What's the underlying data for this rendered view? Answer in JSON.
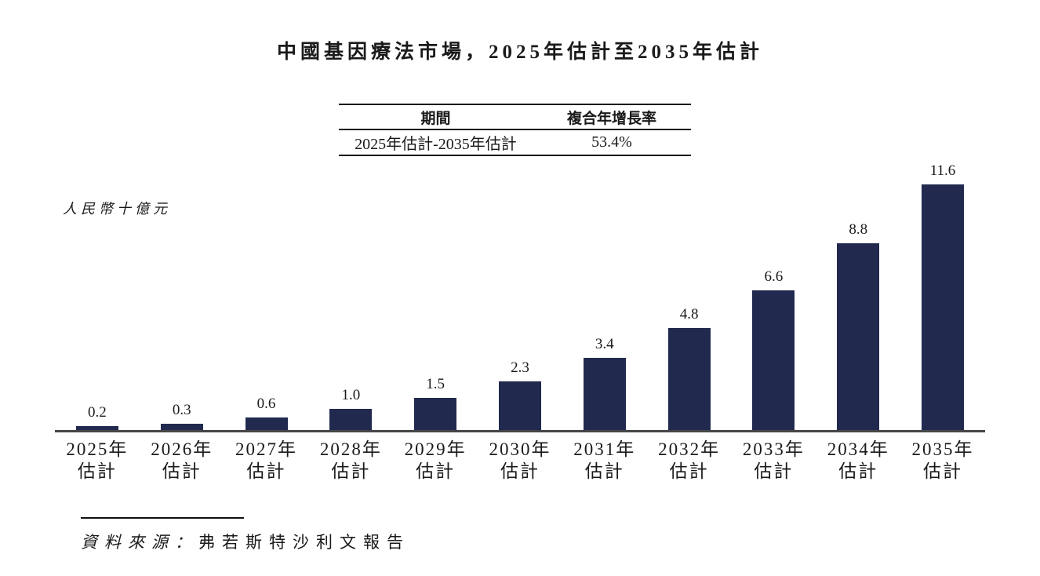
{
  "title": "中國基因療法市場，2025年估計至2035年估計",
  "cagr_table": {
    "headers": [
      "期間",
      "複合年增長率"
    ],
    "rows": [
      {
        "period": "2025年估計-2035年估計",
        "cagr": "53.4%"
      }
    ]
  },
  "unit_label": "人民幣十億元",
  "source": {
    "prefix": "資料來源：",
    "text": "弗若斯特沙利文報告"
  },
  "colors": {
    "bar": "#212A4E",
    "axis": "#474747",
    "text": "#1A1A1A"
  },
  "chart_data": {
    "type": "bar",
    "title": "中國基因療法市場，2025年估計至2035年估計",
    "xlabel": "",
    "ylabel": "人民幣十億元",
    "ylim": [
      0,
      12
    ],
    "grid": false,
    "legend": false,
    "categories": [
      "2025年估計",
      "2026年估計",
      "2027年估計",
      "2028年估計",
      "2029年估計",
      "2030年估計",
      "2031年估計",
      "2032年估計",
      "2033年估計",
      "2034年估計",
      "2035年估計"
    ],
    "tick_lines": [
      [
        "2025年",
        "估計"
      ],
      [
        "2026年",
        "估計"
      ],
      [
        "2027年",
        "估計"
      ],
      [
        "2028年",
        "估計"
      ],
      [
        "2029年",
        "估計"
      ],
      [
        "2030年",
        "估計"
      ],
      [
        "2031年",
        "估計"
      ],
      [
        "2032年",
        "估計"
      ],
      [
        "2033年",
        "估計"
      ],
      [
        "2034年",
        "估計"
      ],
      [
        "2035年",
        "估計"
      ]
    ],
    "values": [
      0.2,
      0.3,
      0.6,
      1.0,
      1.5,
      2.3,
      3.4,
      4.8,
      6.6,
      8.8,
      11.6
    ],
    "labels": [
      "0.2",
      "0.3",
      "0.6",
      "1.0",
      "1.5",
      "2.3",
      "3.4",
      "4.8",
      "6.6",
      "8.8",
      "11.6"
    ],
    "cagr": {
      "period": "2025年估計-2035年估計",
      "value": "53.4%"
    },
    "annotation_table_position": "top-center",
    "bar_label_position": "above"
  }
}
